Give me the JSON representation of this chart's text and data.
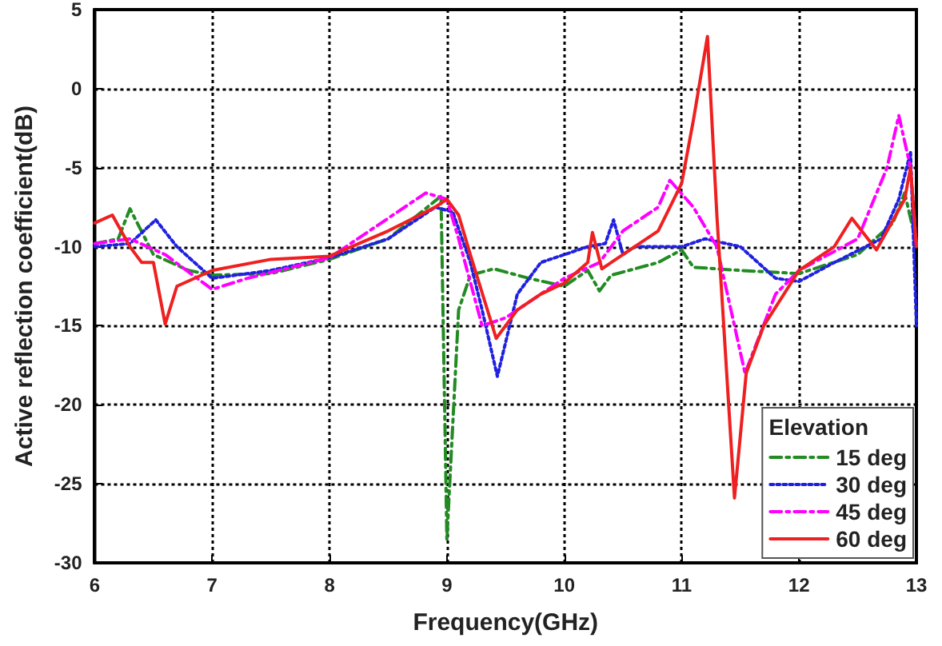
{
  "chart_data": {
    "type": "line",
    "xlabel": "Frequency(GHz)",
    "ylabel": "Active reflection coefficient(dB)",
    "legend_title": "Elevation",
    "xlim": [
      6,
      13
    ],
    "xticks": [
      6,
      7,
      8,
      9,
      10,
      11,
      12,
      13
    ],
    "ylim": [
      -30,
      5
    ],
    "yticks": [
      -30,
      -25,
      -20,
      -15,
      -10,
      -5,
      0,
      5
    ],
    "grid": true,
    "legend": "bottom right",
    "marker": "none",
    "series": [
      {
        "name": "15 deg",
        "color": "#228b22",
        "line_style": "dashed",
        "x": [
          6,
          6.2,
          6.3,
          6.5,
          6.8,
          7,
          7.5,
          8,
          8.5,
          8.95,
          9.0,
          9.1,
          9.2,
          9.4,
          9.7,
          10,
          10.2,
          10.3,
          10.4,
          10.8,
          11,
          11.1,
          11.5,
          12,
          12.5,
          12.8,
          12.9,
          13
        ],
        "values": [
          -9.8,
          -9.5,
          -7.6,
          -10.5,
          -11.5,
          -11.8,
          -11.7,
          -10.8,
          -9.5,
          -6.8,
          -28.5,
          -14,
          -11.8,
          -11.4,
          -12,
          -12.5,
          -11.5,
          -12.8,
          -11.8,
          -11,
          -10.2,
          -11.3,
          -11.5,
          -11.7,
          -10.5,
          -8.5,
          -6.6,
          -9.8
        ]
      },
      {
        "name": "30 deg",
        "color": "#2020e0",
        "line_style": "dotted",
        "x": [
          6,
          6.3,
          6.52,
          6.7,
          7,
          7.5,
          8,
          8.5,
          8.9,
          9.05,
          9.2,
          9.3,
          9.43,
          9.6,
          9.8,
          10,
          10.2,
          10.35,
          10.42,
          10.5,
          10.6,
          11,
          11.2,
          11.5,
          11.8,
          12,
          12.3,
          12.7,
          12.85,
          12.95,
          13
        ],
        "values": [
          -10,
          -9.8,
          -8.3,
          -10,
          -12,
          -11.5,
          -10.7,
          -9.5,
          -7.5,
          -7.8,
          -11,
          -14,
          -18.2,
          -13,
          -11,
          -10.5,
          -10,
          -9.8,
          -8.3,
          -10.5,
          -10,
          -10,
          -9.5,
          -10,
          -12,
          -12.2,
          -11,
          -9.5,
          -7,
          -4,
          -15
        ]
      },
      {
        "name": "45 deg",
        "color": "#ff00ff",
        "line_style": "dashed",
        "x": [
          6,
          6.3,
          6.6,
          7,
          7.3,
          8,
          8.5,
          8.82,
          9.0,
          9.1,
          9.3,
          9.5,
          10,
          10.3,
          10.5,
          10.8,
          10.9,
          11.1,
          11.3,
          11.54,
          11.8,
          12,
          12.5,
          12.75,
          12.85,
          12.95,
          13
        ],
        "values": [
          -9.8,
          -9.5,
          -10.5,
          -12.7,
          -12,
          -10.7,
          -8.2,
          -6.6,
          -7,
          -9.5,
          -15,
          -14.5,
          -12,
          -11,
          -9,
          -7.5,
          -5.8,
          -7.5,
          -10,
          -18,
          -13,
          -11.5,
          -9.5,
          -5,
          -1.7,
          -5,
          -10
        ]
      },
      {
        "name": "60 deg",
        "color": "#ee2020",
        "line_style": "solid",
        "x": [
          6,
          6.15,
          6.3,
          6.4,
          6.5,
          6.6,
          6.7,
          7,
          7.5,
          8,
          8.5,
          8.9,
          9.0,
          9.1,
          9.2,
          9.42,
          9.6,
          9.8,
          10,
          10.2,
          10.24,
          10.32,
          10.5,
          10.8,
          11.0,
          11.1,
          11.22,
          11.3,
          11.45,
          11.55,
          11.7,
          12,
          12.3,
          12.45,
          12.66,
          12.9,
          12.95,
          13
        ],
        "values": [
          -8.5,
          -8,
          -10,
          -11,
          -11,
          -14.9,
          -12.5,
          -11.5,
          -10.8,
          -10.6,
          -9,
          -7.5,
          -7,
          -8,
          -10.5,
          -15.8,
          -14,
          -13,
          -12.3,
          -11,
          -9.1,
          -11.4,
          -10.5,
          -9,
          -6,
          -2,
          3.3,
          -8,
          -25.9,
          -18,
          -15,
          -11.5,
          -10,
          -8.2,
          -10.2,
          -7,
          -5,
          -10
        ]
      }
    ]
  }
}
